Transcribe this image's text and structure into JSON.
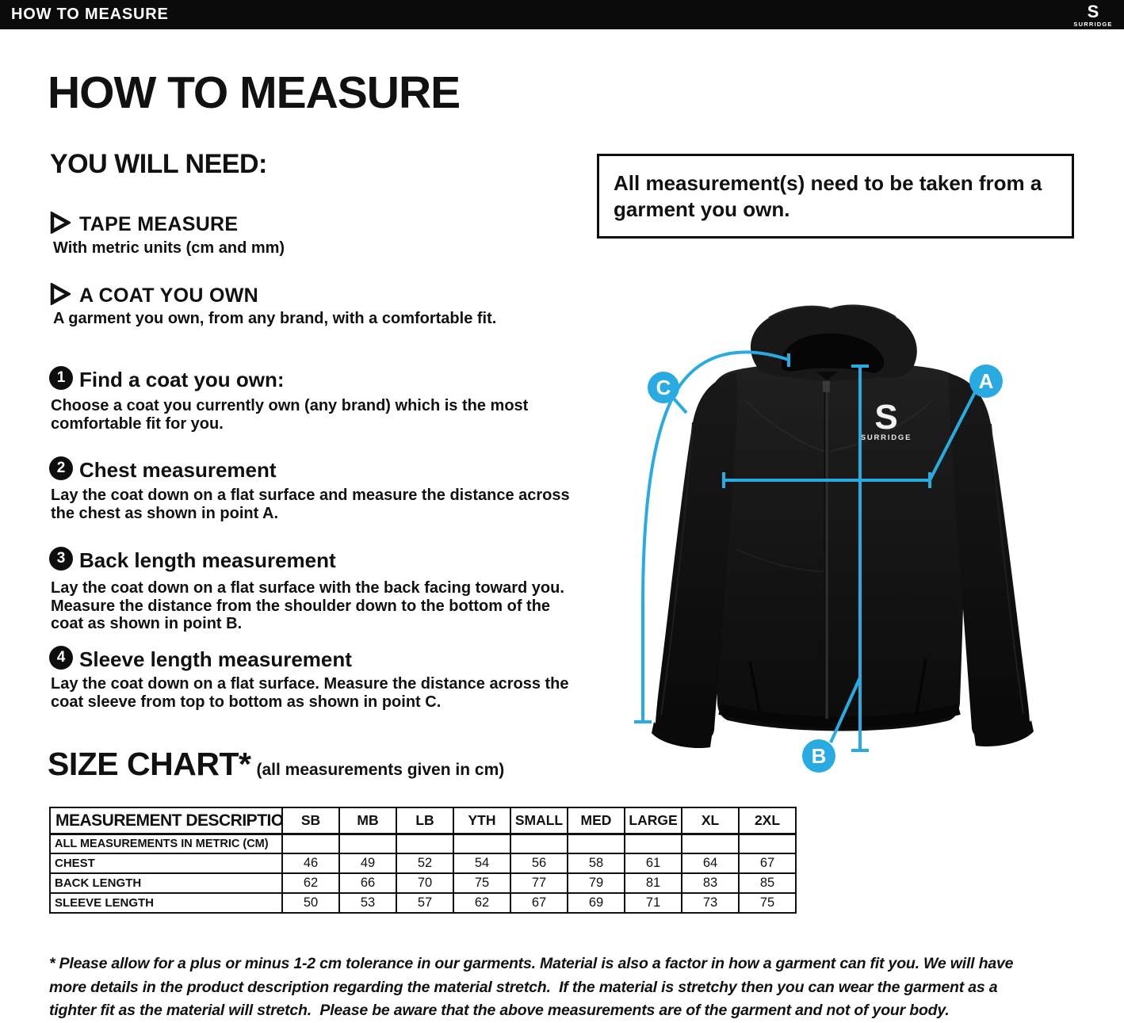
{
  "header": {
    "title": "HOW TO MEASURE",
    "brand": "SURRIDGE"
  },
  "page": {
    "title": "HOW TO MEASURE",
    "you_will_need": {
      "heading": "YOU WILL NEED:",
      "items": [
        {
          "title": "TAPE MEASURE",
          "desc": "With metric units (cm and mm)"
        },
        {
          "title": "A COAT YOU OWN",
          "desc": "A garment you own, from any brand, with a comfortable fit."
        }
      ]
    },
    "steps": [
      {
        "num": "1",
        "title": "Find a coat you own:",
        "body": "Choose a coat you currently own (any brand) which is the most\ncomfortable fit for you."
      },
      {
        "num": "2",
        "title": "Chest measurement",
        "body": "Lay the coat down on a flat surface and measure the distance across\nthe chest as shown in point A."
      },
      {
        "num": "3",
        "title": "Back length measurement",
        "body": "Lay the coat down on a flat surface with the back facing toward you.\nMeasure the distance from the shoulder down to the bottom of the\ncoat as shown in point B."
      },
      {
        "num": "4",
        "title": "Sleeve length measurement",
        "body": "Lay the coat down on a flat surface. Measure the distance across the\ncoat sleeve from top to bottom as shown in point C."
      }
    ],
    "callout": "All measurement(s) need to be taken from a garment you own.",
    "size_chart": {
      "heading": "SIZE CHART*",
      "subheading": "(all measurements given in cm)",
      "columns": [
        "MEASUREMENT DESCRIPTION",
        "SB",
        "MB",
        "LB",
        "YTH",
        "SMALL",
        "MED",
        "LARGE",
        "XL",
        "2XL"
      ],
      "note_row": "ALL MEASUREMENTS IN METRIC (CM)",
      "rows": [
        {
          "label": "CHEST",
          "values": [
            "46",
            "49",
            "52",
            "54",
            "56",
            "58",
            "61",
            "64",
            "67"
          ]
        },
        {
          "label": "BACK LENGTH",
          "values": [
            "62",
            "66",
            "70",
            "75",
            "77",
            "79",
            "81",
            "83",
            "85"
          ]
        },
        {
          "label": "SLEEVE LENGTH",
          "values": [
            "50",
            "53",
            "57",
            "62",
            "67",
            "69",
            "71",
            "73",
            "75"
          ]
        }
      ]
    },
    "footnote": "* Please allow for a plus or minus 1-2 cm tolerance in our garments. Material is also a factor in how a garment can fit you. We will have\nmore details in the product description regarding the material stretch.  If the material is stretchy then you can wear the garment as a\ntighter fit as the material will stretch.  Please be aware that the above measurements are of the garment and not of your body.",
    "diagram": {
      "label_a": "A",
      "label_b": "B",
      "label_c": "C",
      "garment_brand": "SURRIDGE",
      "accent_blue": "#29ABE2"
    }
  }
}
